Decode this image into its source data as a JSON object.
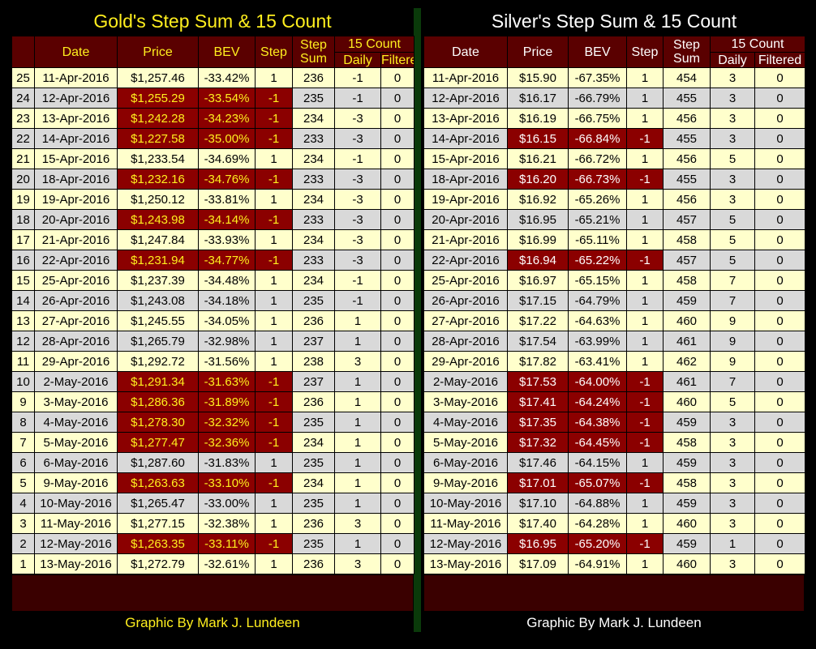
{
  "gold": {
    "title": "Gold's Step Sum & 15 Count",
    "headers": {
      "date": "Date",
      "price": "Price",
      "bev": "BEV",
      "step": "Step",
      "step_sum": "Step Sum",
      "count": "15 Count",
      "daily": "Daily",
      "filtered": "Filtered"
    },
    "footer": "Graphic By Mark J. Lundeen",
    "rows": [
      [
        "25",
        "11-Apr-2016",
        "$1,257.46",
        "-33.42%",
        "1",
        "236",
        "-1",
        "0"
      ],
      [
        "24",
        "12-Apr-2016",
        "$1,255.29",
        "-33.54%",
        "-1",
        "235",
        "-1",
        "0"
      ],
      [
        "23",
        "13-Apr-2016",
        "$1,242.28",
        "-34.23%",
        "-1",
        "234",
        "-3",
        "0"
      ],
      [
        "22",
        "14-Apr-2016",
        "$1,227.58",
        "-35.00%",
        "-1",
        "233",
        "-3",
        "0"
      ],
      [
        "21",
        "15-Apr-2016",
        "$1,233.54",
        "-34.69%",
        "1",
        "234",
        "-1",
        "0"
      ],
      [
        "20",
        "18-Apr-2016",
        "$1,232.16",
        "-34.76%",
        "-1",
        "233",
        "-3",
        "0"
      ],
      [
        "19",
        "19-Apr-2016",
        "$1,250.12",
        "-33.81%",
        "1",
        "234",
        "-3",
        "0"
      ],
      [
        "18",
        "20-Apr-2016",
        "$1,243.98",
        "-34.14%",
        "-1",
        "233",
        "-3",
        "0"
      ],
      [
        "17",
        "21-Apr-2016",
        "$1,247.84",
        "-33.93%",
        "1",
        "234",
        "-3",
        "0"
      ],
      [
        "16",
        "22-Apr-2016",
        "$1,231.94",
        "-34.77%",
        "-1",
        "233",
        "-3",
        "0"
      ],
      [
        "15",
        "25-Apr-2016",
        "$1,237.39",
        "-34.48%",
        "1",
        "234",
        "-1",
        "0"
      ],
      [
        "14",
        "26-Apr-2016",
        "$1,243.08",
        "-34.18%",
        "1",
        "235",
        "-1",
        "0"
      ],
      [
        "13",
        "27-Apr-2016",
        "$1,245.55",
        "-34.05%",
        "1",
        "236",
        "1",
        "0"
      ],
      [
        "12",
        "28-Apr-2016",
        "$1,265.79",
        "-32.98%",
        "1",
        "237",
        "1",
        "0"
      ],
      [
        "11",
        "29-Apr-2016",
        "$1,292.72",
        "-31.56%",
        "1",
        "238",
        "3",
        "0"
      ],
      [
        "10",
        "2-May-2016",
        "$1,291.34",
        "-31.63%",
        "-1",
        "237",
        "1",
        "0"
      ],
      [
        "9",
        "3-May-2016",
        "$1,286.36",
        "-31.89%",
        "-1",
        "236",
        "1",
        "0"
      ],
      [
        "8",
        "4-May-2016",
        "$1,278.30",
        "-32.32%",
        "-1",
        "235",
        "1",
        "0"
      ],
      [
        "7",
        "5-May-2016",
        "$1,277.47",
        "-32.36%",
        "-1",
        "234",
        "1",
        "0"
      ],
      [
        "6",
        "6-May-2016",
        "$1,287.60",
        "-31.83%",
        "1",
        "235",
        "1",
        "0"
      ],
      [
        "5",
        "9-May-2016",
        "$1,263.63",
        "-33.10%",
        "-1",
        "234",
        "1",
        "0"
      ],
      [
        "4",
        "10-May-2016",
        "$1,265.47",
        "-33.00%",
        "1",
        "235",
        "1",
        "0"
      ],
      [
        "3",
        "11-May-2016",
        "$1,277.15",
        "-32.38%",
        "1",
        "236",
        "3",
        "0"
      ],
      [
        "2",
        "12-May-2016",
        "$1,263.35",
        "-33.11%",
        "-1",
        "235",
        "1",
        "0"
      ],
      [
        "1",
        "13-May-2016",
        "$1,272.79",
        "-32.61%",
        "1",
        "236",
        "3",
        "0"
      ]
    ]
  },
  "silver": {
    "title": "Silver's Step Sum & 15 Count",
    "headers": {
      "date": "Date",
      "price": "Price",
      "bev": "BEV",
      "step": "Step",
      "step_sum": "Step Sum",
      "count": "15 Count",
      "daily": "Daily",
      "filtered": "Filtered"
    },
    "footer": "Graphic By Mark J. Lundeen",
    "rows": [
      [
        "11-Apr-2016",
        "$15.90",
        "-67.35%",
        "1",
        "454",
        "3",
        "0"
      ],
      [
        "12-Apr-2016",
        "$16.17",
        "-66.79%",
        "1",
        "455",
        "3",
        "0"
      ],
      [
        "13-Apr-2016",
        "$16.19",
        "-66.75%",
        "1",
        "456",
        "3",
        "0"
      ],
      [
        "14-Apr-2016",
        "$16.15",
        "-66.84%",
        "-1",
        "455",
        "3",
        "0"
      ],
      [
        "15-Apr-2016",
        "$16.21",
        "-66.72%",
        "1",
        "456",
        "5",
        "0"
      ],
      [
        "18-Apr-2016",
        "$16.20",
        "-66.73%",
        "-1",
        "455",
        "3",
        "0"
      ],
      [
        "19-Apr-2016",
        "$16.92",
        "-65.26%",
        "1",
        "456",
        "3",
        "0"
      ],
      [
        "20-Apr-2016",
        "$16.95",
        "-65.21%",
        "1",
        "457",
        "5",
        "0"
      ],
      [
        "21-Apr-2016",
        "$16.99",
        "-65.11%",
        "1",
        "458",
        "5",
        "0"
      ],
      [
        "22-Apr-2016",
        "$16.94",
        "-65.22%",
        "-1",
        "457",
        "5",
        "0"
      ],
      [
        "25-Apr-2016",
        "$16.97",
        "-65.15%",
        "1",
        "458",
        "7",
        "0"
      ],
      [
        "26-Apr-2016",
        "$17.15",
        "-64.79%",
        "1",
        "459",
        "7",
        "0"
      ],
      [
        "27-Apr-2016",
        "$17.22",
        "-64.63%",
        "1",
        "460",
        "9",
        "0"
      ],
      [
        "28-Apr-2016",
        "$17.54",
        "-63.99%",
        "1",
        "461",
        "9",
        "0"
      ],
      [
        "29-Apr-2016",
        "$17.82",
        "-63.41%",
        "1",
        "462",
        "9",
        "0"
      ],
      [
        "2-May-2016",
        "$17.53",
        "-64.00%",
        "-1",
        "461",
        "7",
        "0"
      ],
      [
        "3-May-2016",
        "$17.41",
        "-64.24%",
        "-1",
        "460",
        "5",
        "0"
      ],
      [
        "4-May-2016",
        "$17.35",
        "-64.38%",
        "-1",
        "459",
        "3",
        "0"
      ],
      [
        "5-May-2016",
        "$17.32",
        "-64.45%",
        "-1",
        "458",
        "3",
        "0"
      ],
      [
        "6-May-2016",
        "$17.46",
        "-64.15%",
        "1",
        "459",
        "3",
        "0"
      ],
      [
        "9-May-2016",
        "$17.01",
        "-65.07%",
        "-1",
        "458",
        "3",
        "0"
      ],
      [
        "10-May-2016",
        "$17.10",
        "-64.88%",
        "1",
        "459",
        "3",
        "0"
      ],
      [
        "11-May-2016",
        "$17.40",
        "-64.28%",
        "1",
        "460",
        "3",
        "0"
      ],
      [
        "12-May-2016",
        "$16.95",
        "-65.20%",
        "-1",
        "459",
        "1",
        "0"
      ],
      [
        "13-May-2016",
        "$17.09",
        "-64.91%",
        "1",
        "460",
        "3",
        "0"
      ]
    ]
  }
}
